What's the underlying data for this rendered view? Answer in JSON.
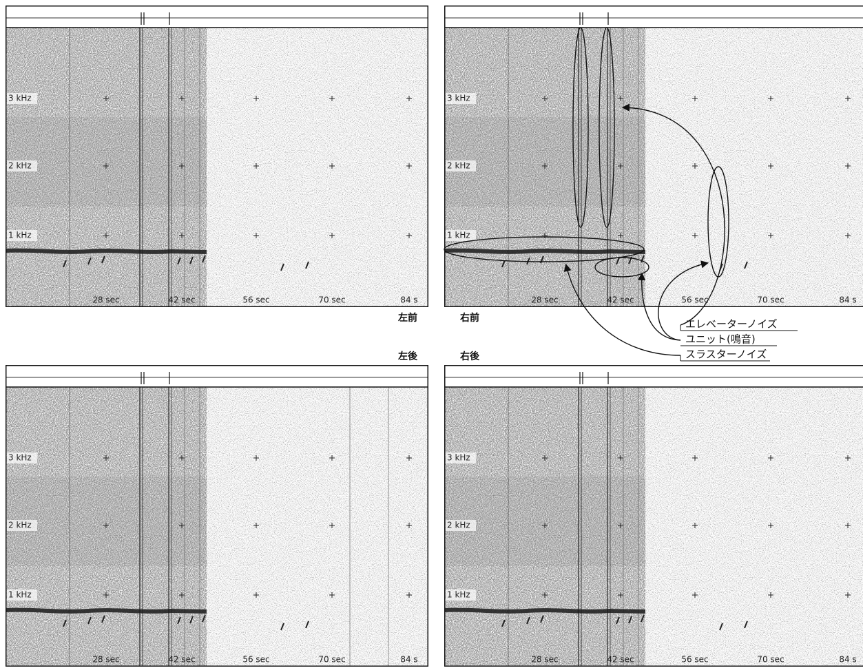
{
  "panels": [
    {
      "label": "左前",
      "y_labels": [
        "3 kHz",
        "2 kHz",
        "1 kHz"
      ],
      "x_labels": [
        "28 sec",
        "42 sec",
        "56 sec",
        "70 sec",
        "84 s"
      ]
    },
    {
      "label": "右前",
      "y_labels": [
        "3 kHz",
        "2 kHz",
        "1 kHz"
      ],
      "x_labels": [
        "28 sec",
        "42 sec",
        "56 sec",
        "70 sec",
        "84 s"
      ]
    },
    {
      "label": "左後",
      "y_labels": [
        "3 kHz",
        "2 kHz",
        "1 kHz"
      ],
      "x_labels": [
        "28 sec",
        "42 sec",
        "56 sec",
        "70 sec",
        "84 s"
      ]
    },
    {
      "label": "右後",
      "y_labels": [
        "3 kHz",
        "2 kHz",
        "1 kHz"
      ],
      "x_labels": [
        "28 sec",
        "42 sec",
        "56 sec",
        "70 sec",
        "84 s"
      ]
    }
  ],
  "annotations": [
    "エレベーターノイズ",
    "ユニット(鳴音)",
    "スラスターノイズ"
  ]
}
